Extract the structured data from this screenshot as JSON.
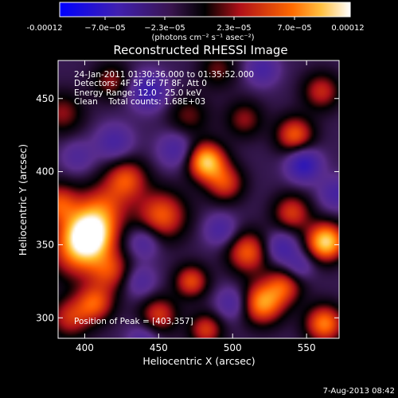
{
  "colorbar": {
    "tick_labels": [
      "-0.00012",
      "−7.0e−05",
      "−2.3e−05",
      "2.3e−05",
      "7.0e−05",
      "0.00012"
    ],
    "min": -0.00012,
    "max": 0.00012,
    "unit_label": "(photons cm⁻² s⁻¹ asec⁻²)"
  },
  "info": {
    "time_range": "24-Jan-2011 01:30:36.000 to 01:35:52.000",
    "detectors": "Detectors: 4F 5F 6F 7F 8F, Att 0",
    "energy_range": "Energy Range: 12.0 - 25.0 keV",
    "method_counts": "Clean    Total counts: 1.68E+03",
    "peak_position": "Position of Peak = [403,357]"
  },
  "footer": {
    "date_stamp": "7-Aug-2013 08:42"
  },
  "chart_data": {
    "type": "heatmap",
    "title": "Reconstructed RHESSI Image",
    "xlabel": "Heliocentric X (arcsec)",
    "ylabel": "Heliocentric Y (arcsec)",
    "xlim": [
      382,
      572
    ],
    "ylim": [
      286,
      476
    ],
    "x_ticks": [
      400,
      450,
      500,
      550
    ],
    "y_ticks": [
      300,
      350,
      400,
      450
    ],
    "colormap": [
      "#0000ff",
      "#5a2a9a",
      "#1a1a1a",
      "#c0181c",
      "#ff7a00",
      "#ffffff"
    ],
    "blobs": [
      {
        "x": 403,
        "y": 357,
        "amp": 1.0,
        "sigma": 11
      },
      {
        "x": 395,
        "y": 345,
        "amp": 0.55,
        "sigma": 14
      },
      {
        "x": 412,
        "y": 375,
        "amp": 0.5,
        "sigma": 12
      },
      {
        "x": 382,
        "y": 378,
        "amp": 0.55,
        "sigma": 10
      },
      {
        "x": 390,
        "y": 300,
        "amp": 0.45,
        "sigma": 10
      },
      {
        "x": 407,
        "y": 310,
        "amp": 0.55,
        "sigma": 9
      },
      {
        "x": 418,
        "y": 332,
        "amp": 0.45,
        "sigma": 10
      },
      {
        "x": 482,
        "y": 407,
        "amp": 0.9,
        "sigma": 9
      },
      {
        "x": 495,
        "y": 392,
        "amp": 0.5,
        "sigma": 9
      },
      {
        "x": 452,
        "y": 370,
        "amp": 0.6,
        "sigma": 12
      },
      {
        "x": 428,
        "y": 395,
        "amp": 0.55,
        "sigma": 10
      },
      {
        "x": 510,
        "y": 345,
        "amp": 0.6,
        "sigma": 10
      },
      {
        "x": 472,
        "y": 325,
        "amp": 0.55,
        "sigma": 8
      },
      {
        "x": 450,
        "y": 302,
        "amp": 0.5,
        "sigma": 9
      },
      {
        "x": 482,
        "y": 292,
        "amp": 0.5,
        "sigma": 8
      },
      {
        "x": 520,
        "y": 310,
        "amp": 0.75,
        "sigma": 10
      },
      {
        "x": 535,
        "y": 322,
        "amp": 0.5,
        "sigma": 9
      },
      {
        "x": 562,
        "y": 296,
        "amp": 0.7,
        "sigma": 9
      },
      {
        "x": 540,
        "y": 372,
        "amp": 0.5,
        "sigma": 9
      },
      {
        "x": 563,
        "y": 352,
        "amp": 0.95,
        "sigma": 9
      },
      {
        "x": 542,
        "y": 425,
        "amp": 0.6,
        "sigma": 9
      },
      {
        "x": 560,
        "y": 455,
        "amp": 0.45,
        "sigma": 9
      },
      {
        "x": 508,
        "y": 436,
        "amp": 0.35,
        "sigma": 9
      },
      {
        "x": 470,
        "y": 438,
        "amp": 0.3,
        "sigma": 10
      },
      {
        "x": 385,
        "y": 440,
        "amp": 0.35,
        "sigma": 10
      },
      {
        "x": 418,
        "y": 462,
        "amp": 0.35,
        "sigma": 9
      },
      {
        "x": 490,
        "y": 470,
        "amp": 0.3,
        "sigma": 9
      },
      {
        "x": 548,
        "y": 405,
        "amp": -0.6,
        "sigma": 8
      },
      {
        "x": 443,
        "y": 455,
        "amp": -0.5,
        "sigma": 9
      },
      {
        "x": 520,
        "y": 470,
        "amp": -0.35,
        "sigma": 8
      },
      {
        "x": 462,
        "y": 415,
        "amp": -0.35,
        "sigma": 9
      },
      {
        "x": 420,
        "y": 420,
        "amp": -0.35,
        "sigma": 9
      },
      {
        "x": 440,
        "y": 352,
        "amp": -0.35,
        "sigma": 8
      },
      {
        "x": 492,
        "y": 360,
        "amp": -0.35,
        "sigma": 8
      },
      {
        "x": 533,
        "y": 348,
        "amp": -0.4,
        "sigma": 8
      },
      {
        "x": 545,
        "y": 335,
        "amp": -0.3,
        "sigma": 7
      },
      {
        "x": 500,
        "y": 310,
        "amp": -0.35,
        "sigma": 8
      },
      {
        "x": 437,
        "y": 325,
        "amp": -0.3,
        "sigma": 8
      },
      {
        "x": 440,
        "y": 285,
        "amp": -0.3,
        "sigma": 8
      },
      {
        "x": 570,
        "y": 385,
        "amp": -0.35,
        "sigma": 8
      },
      {
        "x": 395,
        "y": 410,
        "amp": -0.25,
        "sigma": 8
      }
    ]
  }
}
